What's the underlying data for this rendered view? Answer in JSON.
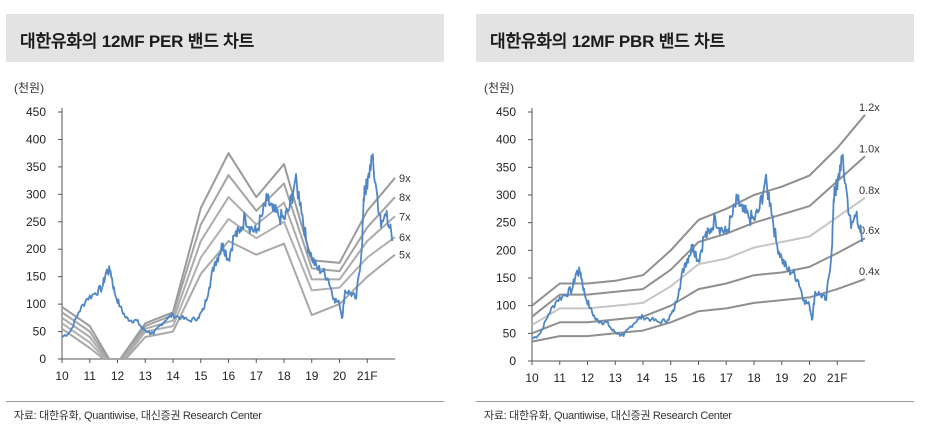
{
  "charts": [
    {
      "id": "left",
      "title": "대한유화의 12MF PER 밴드 차트",
      "unit": "(천원)",
      "source": "자료: 대한유화, Quantiwise, 대신증권 Research Center",
      "chart_data": {
        "type": "line",
        "xlim": [
          10,
          22
        ],
        "ylim": [
          0,
          450
        ],
        "yticks": [
          0,
          50,
          100,
          150,
          200,
          250,
          300,
          350,
          400,
          450
        ],
        "xticks": [
          {
            "v": 10,
            "label": "10"
          },
          {
            "v": 11,
            "label": "11"
          },
          {
            "v": 12,
            "label": "12"
          },
          {
            "v": 13,
            "label": "13"
          },
          {
            "v": 14,
            "label": "14"
          },
          {
            "v": 15,
            "label": "15"
          },
          {
            "v": 16,
            "label": "16"
          },
          {
            "v": 17,
            "label": "17"
          },
          {
            "v": 18,
            "label": "18"
          },
          {
            "v": 19,
            "label": "19"
          },
          {
            "v": 20,
            "label": "20"
          },
          {
            "v": 21,
            "label": "21F"
          }
        ],
        "bands": [
          {
            "name": "9x",
            "x": [
              10,
              11,
              11.7,
              12.1,
              13,
              14,
              15,
              16,
              17,
              18,
              19,
              20,
              21,
              22
            ],
            "y": [
              95,
              60,
              0,
              0,
              65,
              85,
              275,
              375,
              295,
              355,
              180,
              175,
              270,
              330
            ]
          },
          {
            "name": "8x",
            "x": [
              10,
              11,
              11.65,
              12.15,
              13,
              14,
              15,
              16,
              17,
              18,
              19,
              20,
              21,
              22
            ],
            "y": [
              85,
              50,
              0,
              0,
              60,
              80,
              245,
              335,
              270,
              320,
              165,
              160,
              240,
              295
            ]
          },
          {
            "name": "7x",
            "x": [
              10,
              11,
              11.6,
              12.2,
              13,
              14,
              15,
              16,
              17,
              18,
              19,
              20,
              21,
              22
            ],
            "y": [
              75,
              40,
              0,
              0,
              55,
              70,
              215,
              295,
              245,
              285,
              145,
              145,
              215,
              260
            ]
          },
          {
            "name": "6x",
            "x": [
              10,
              11,
              11.55,
              12.25,
              13,
              14,
              15,
              16,
              17,
              18,
              19,
              20,
              21,
              22
            ],
            "y": [
              65,
              30,
              0,
              0,
              50,
              60,
              185,
              255,
              220,
              250,
              125,
              130,
              185,
              222
            ]
          },
          {
            "name": "5x",
            "x": [
              10,
              11,
              11.5,
              12.3,
              13,
              14,
              15,
              16,
              17,
              18,
              19,
              20,
              21,
              22
            ],
            "y": [
              55,
              20,
              0,
              0,
              40,
              50,
              155,
              215,
              190,
              210,
              80,
              100,
              150,
              190
            ]
          }
        ],
        "series": [
          {
            "x": [
              10,
              10.3,
              10.6,
              10.9,
              11.2,
              11.45,
              11.6,
              11.75,
              11.9,
              12.1,
              12.3,
              12.5,
              12.7,
              12.9,
              13.1,
              13.3,
              13.5,
              13.8,
              14.0,
              14.3,
              14.6,
              14.9,
              15.1,
              15.3,
              15.5,
              15.65,
              15.8,
              16.0,
              16.2,
              16.4,
              16.6,
              16.8,
              17.0,
              17.2,
              17.4,
              17.6,
              17.8,
              18.0,
              18.2,
              18.4,
              18.6,
              18.8,
              19.0,
              19.2,
              19.4,
              19.6,
              19.8,
              20.0,
              20.1,
              20.2,
              20.4,
              20.6,
              20.8,
              20.9,
              21.0,
              21.15,
              21.3,
              21.5,
              21.7,
              21.9
            ],
            "y": [
              40,
              50,
              85,
              110,
              120,
              130,
              160,
              160,
              120,
              95,
              75,
              70,
              70,
              55,
              50,
              45,
              60,
              75,
              80,
              75,
              70,
              75,
              90,
              130,
              175,
              190,
              210,
              180,
              225,
              230,
              260,
              240,
              230,
              260,
              290,
              270,
              260,
              255,
              275,
              325,
              285,
              215,
              185,
              165,
              160,
              145,
              110,
              100,
              75,
              125,
              120,
              110,
              200,
              315,
              310,
              370,
              320,
              240,
              270,
              215
            ]
          }
        ]
      }
    },
    {
      "id": "right",
      "title": "대한유화의 12MF PBR 밴드 차트",
      "unit": "(천원)",
      "source": "자료: 대한유화, Quantiwise, 대신증권 Research Center",
      "chart_data": {
        "type": "line",
        "xlim": [
          10,
          22
        ],
        "ylim": [
          0,
          450
        ],
        "yticks": [
          0,
          50,
          100,
          150,
          200,
          250,
          300,
          350,
          400,
          450
        ],
        "xticks": [
          {
            "v": 10,
            "label": "10"
          },
          {
            "v": 11,
            "label": "11"
          },
          {
            "v": 12,
            "label": "12"
          },
          {
            "v": 13,
            "label": "13"
          },
          {
            "v": 14,
            "label": "14"
          },
          {
            "v": 15,
            "label": "15"
          },
          {
            "v": 16,
            "label": "16"
          },
          {
            "v": 17,
            "label": "17"
          },
          {
            "v": 18,
            "label": "18"
          },
          {
            "v": 19,
            "label": "19"
          },
          {
            "v": 20,
            "label": "20"
          },
          {
            "v": 21,
            "label": "21F"
          }
        ],
        "bands": [
          {
            "name": "1.2x",
            "x": [
              10,
              11,
              12,
              13,
              14,
              15,
              16,
              17,
              18,
              19,
              20,
              21,
              22
            ],
            "y": [
              100,
              140,
              140,
              145,
              155,
              200,
              255,
              275,
              300,
              315,
              335,
              385,
              445
            ]
          },
          {
            "name": "1.0x",
            "x": [
              10,
              11,
              12,
              13,
              14,
              15,
              16,
              17,
              18,
              19,
              20,
              21,
              22
            ],
            "y": [
              80,
              120,
              120,
              125,
              130,
              165,
              215,
              230,
              250,
              265,
              280,
              325,
              370
            ]
          },
          {
            "name": "0.8x",
            "x": [
              10,
              11,
              12,
              13,
              14,
              15,
              16,
              17,
              18,
              19,
              20,
              21,
              22
            ],
            "y": [
              65,
              95,
              95,
              100,
              105,
              135,
              175,
              185,
              205,
              215,
              225,
              260,
              295
            ]
          },
          {
            "name": "0.6x",
            "x": [
              10,
              11,
              12,
              13,
              14,
              15,
              16,
              17,
              18,
              19,
              20,
              21,
              22
            ],
            "y": [
              50,
              70,
              70,
              75,
              80,
              100,
              130,
              140,
              155,
              160,
              170,
              195,
              222
            ]
          },
          {
            "name": "0.4x",
            "x": [
              10,
              11,
              12,
              13,
              14,
              15,
              16,
              17,
              18,
              19,
              20,
              21,
              22
            ],
            "y": [
              35,
              45,
              45,
              50,
              55,
              70,
              90,
              95,
              105,
              110,
              115,
              130,
              148
            ]
          }
        ],
        "series": [
          {
            "x": [
              10,
              10.3,
              10.6,
              10.9,
              11.2,
              11.45,
              11.6,
              11.75,
              11.9,
              12.1,
              12.3,
              12.5,
              12.7,
              12.9,
              13.1,
              13.3,
              13.5,
              13.8,
              14.0,
              14.3,
              14.6,
              14.9,
              15.1,
              15.3,
              15.5,
              15.65,
              15.8,
              16.0,
              16.2,
              16.4,
              16.6,
              16.8,
              17.0,
              17.2,
              17.4,
              17.6,
              17.8,
              18.0,
              18.2,
              18.4,
              18.6,
              18.8,
              19.0,
              19.2,
              19.4,
              19.6,
              19.8,
              20.0,
              20.1,
              20.2,
              20.4,
              20.6,
              20.8,
              20.9,
              21.0,
              21.15,
              21.3,
              21.5,
              21.7,
              21.9
            ],
            "y": [
              40,
              50,
              85,
              110,
              120,
              130,
              160,
              160,
              120,
              95,
              75,
              70,
              70,
              55,
              50,
              45,
              60,
              75,
              80,
              75,
              70,
              75,
              90,
              130,
              175,
              190,
              210,
              180,
              225,
              230,
              260,
              240,
              230,
              260,
              290,
              270,
              260,
              255,
              275,
              325,
              285,
              215,
              185,
              165,
              160,
              145,
              110,
              100,
              75,
              125,
              120,
              110,
              200,
              315,
              310,
              370,
              320,
              240,
              270,
              215
            ]
          }
        ]
      }
    }
  ],
  "colors": {
    "price_line": "#4f86c6",
    "band_9x": "#9a9a9a",
    "band_8x": "#a3a3a3",
    "band_7x": "#ababab",
    "band_6x": "#b0b0b0",
    "band_5x": "#a8a8a8",
    "band_1.2x": "#8f8f8f",
    "band_1.0x": "#8f8f8f",
    "band_0.8x": "#c6c6c6",
    "band_0.6x": "#8f8f8f",
    "band_0.4x": "#8f8f8f",
    "title_bg": "#e3e3e3"
  }
}
